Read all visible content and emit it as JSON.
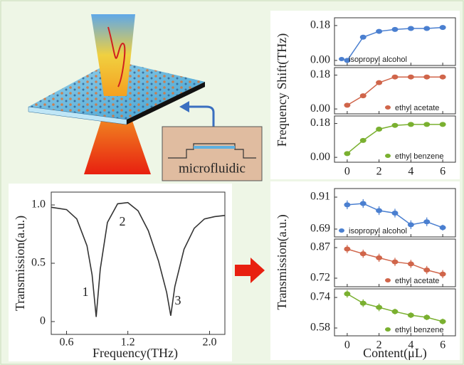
{
  "illustration_label": "microfluidic",
  "chart_data": [
    {
      "type": "line",
      "x_label": "Frequency(THz)",
      "y_label": "Transmission(a.u.)",
      "x": [
        0.45,
        0.6,
        0.7,
        0.8,
        0.85,
        0.89,
        0.93,
        1.0,
        1.1,
        1.2,
        1.3,
        1.4,
        1.5,
        1.58,
        1.62,
        1.66,
        1.75,
        1.85,
        1.95,
        2.05,
        2.15
      ],
      "values": [
        0.98,
        0.96,
        0.88,
        0.65,
        0.4,
        0.04,
        0.45,
        0.85,
        1.01,
        1.02,
        0.95,
        0.78,
        0.52,
        0.25,
        0.05,
        0.3,
        0.62,
        0.8,
        0.88,
        0.9,
        0.91
      ],
      "color": "#333333",
      "xlim": [
        0.45,
        2.15
      ],
      "ylim": [
        -0.11,
        1.11
      ],
      "xticks": [
        0.6,
        1.2,
        {
          "value": 2,
          "label": "2.0"
        }
      ],
      "yticks": [
        0,
        0.5,
        {
          "value": 1,
          "label": "1.0"
        }
      ],
      "annotations": [
        "1",
        "2",
        "3"
      ]
    },
    {
      "type": "scatter",
      "y_label": "Frequency Shift(THz)",
      "x": [
        0,
        1,
        2,
        3,
        4,
        5,
        6
      ],
      "xlim": [
        -0.8,
        6.8
      ],
      "xticks": [
        0,
        2,
        4,
        6
      ],
      "series": [
        {
          "name": "isopropyl alcohol",
          "color": "#4a7fd0",
          "values": [
            0,
            0.12,
            0.15,
            0.16,
            0.165,
            0.165,
            0.17
          ],
          "ylim": [
            -0.026,
            0.22
          ],
          "yticks": [
            {
              "value": 0,
              "label": "0.00"
            },
            0.18
          ]
        },
        {
          "name": "ethyl acetate",
          "color": "#d0654a",
          "values": [
            0.02,
            0.07,
            0.14,
            0.17,
            0.17,
            0.17,
            0.17
          ],
          "ylim": [
            -0.026,
            0.22
          ],
          "yticks": [
            {
              "value": 0,
              "label": "0.00"
            },
            0.18
          ]
        },
        {
          "name": "ethyl benzene",
          "color": "#7ab030",
          "values": [
            0.02,
            0.09,
            0.15,
            0.17,
            0.175,
            0.175,
            0.175
          ],
          "ylim": [
            -0.026,
            0.22
          ],
          "yticks": [
            {
              "value": 0,
              "label": "0.00"
            },
            0.18
          ]
        }
      ]
    },
    {
      "type": "scatter",
      "y_label": "Transmission(a.u.)",
      "x_label": "Content(μL)",
      "x": [
        0,
        1,
        2,
        3,
        4,
        5,
        6
      ],
      "xlim": [
        -0.8,
        6.8
      ],
      "xticks": [
        0,
        2,
        4,
        6
      ],
      "series": [
        {
          "name": "isopropyl alcohol",
          "color": "#4a7fd0",
          "values": [
            0.857,
            0.866,
            0.817,
            0.8,
            0.72,
            0.74,
            0.7
          ],
          "errors": [
            0.03,
            0.03,
            0.03,
            0.03,
            0.03,
            0.03,
            0.02
          ],
          "ylim": [
            0.636,
            0.969
          ],
          "yticks": [
            0.69,
            0.91
          ]
        },
        {
          "name": "ethyl acetate",
          "color": "#d0654a",
          "values": [
            0.863,
            0.84,
            0.82,
            0.8,
            0.79,
            0.76,
            0.74
          ],
          "errors": [
            0.02,
            0.02,
            0.02,
            0.02,
            0.02,
            0.02,
            0.02
          ],
          "ylim": [
            0.678,
            0.912
          ],
          "yticks": [
            0.72,
            0.87
          ]
        },
        {
          "name": "ethyl benzene",
          "color": "#7ab030",
          "values": [
            0.759,
            0.71,
            0.688,
            0.666,
            0.647,
            0.636,
            0.614
          ],
          "errors": [
            0.02,
            0.02,
            0.02,
            0.015,
            0.015,
            0.015,
            0.015
          ],
          "ylim": [
            0.539,
            0.785
          ],
          "yticks": [
            0.58,
            0.74
          ]
        }
      ]
    }
  ]
}
